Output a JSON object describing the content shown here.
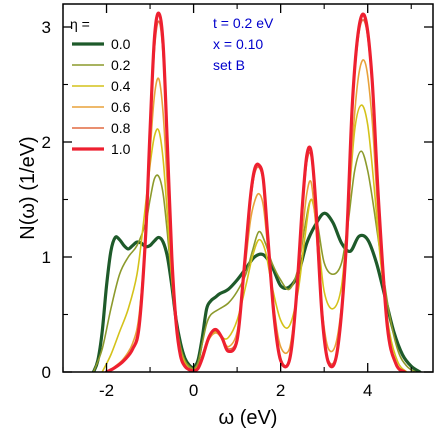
{
  "chart_data": {
    "type": "line",
    "xlabel": "ω (eV)",
    "ylabel": "N(ω) (1/eV)",
    "xlim": [
      -3,
      5.5
    ],
    "ylim": [
      0,
      3.2
    ],
    "xticks": [
      -2,
      0,
      2,
      4
    ],
    "yticks": [
      0,
      1,
      2,
      3
    ],
    "xtick_labels": [
      "-2",
      "0",
      "2",
      "4"
    ],
    "ytick_labels": [
      "0",
      "1",
      "2",
      "3"
    ],
    "grid": false,
    "legend": {
      "title": "η =",
      "placement": "top-left"
    },
    "annotations": [
      {
        "text": "t = 0.2 eV",
        "color": "#0000cc"
      },
      {
        "text": "x = 0.10",
        "color": "#0000cc"
      },
      {
        "text": "set B",
        "color": "#0000cc"
      }
    ],
    "series": [
      {
        "name": "0.0",
        "color": "#1e5a2a",
        "width": 3.2,
        "x": [
          -2.3,
          -2.2,
          -2.1,
          -2.0,
          -1.9,
          -1.8,
          -1.7,
          -1.6,
          -1.5,
          -1.4,
          -1.3,
          -1.2,
          -1.1,
          -1.0,
          -0.9,
          -0.8,
          -0.7,
          -0.6,
          -0.5,
          -0.4,
          -0.3,
          -0.2,
          -0.1,
          0.0,
          0.1,
          0.2,
          0.3,
          0.4,
          0.5,
          0.6,
          0.8,
          1.0,
          1.2,
          1.4,
          1.6,
          1.8,
          2.0,
          2.2,
          2.4,
          2.6,
          2.8,
          3.0,
          3.2,
          3.4,
          3.6,
          3.8,
          4.0,
          4.2,
          4.4,
          4.6,
          4.8,
          5.0,
          5.2
        ],
        "y": [
          0.0,
          0.1,
          0.35,
          0.75,
          1.05,
          1.17,
          1.15,
          1.1,
          1.07,
          1.1,
          1.13,
          1.12,
          1.09,
          1.1,
          1.14,
          1.17,
          1.13,
          1.0,
          0.75,
          0.45,
          0.25,
          0.12,
          0.06,
          0.04,
          0.1,
          0.3,
          0.55,
          0.62,
          0.65,
          0.68,
          0.72,
          0.8,
          0.9,
          1.0,
          1.02,
          0.92,
          0.75,
          0.74,
          0.85,
          1.12,
          1.28,
          1.38,
          1.3,
          1.12,
          1.05,
          1.18,
          1.15,
          0.95,
          0.65,
          0.35,
          0.15,
          0.05,
          0.0
        ]
      },
      {
        "name": "0.2",
        "color": "#8c9a2c",
        "width": 1.6,
        "x": [
          -2.3,
          -2.1,
          -1.9,
          -1.7,
          -1.5,
          -1.3,
          -1.1,
          -1.0,
          -0.9,
          -0.8,
          -0.7,
          -0.6,
          -0.5,
          -0.4,
          -0.3,
          -0.2,
          -0.1,
          0.0,
          0.1,
          0.2,
          0.3,
          0.4,
          0.6,
          0.8,
          1.0,
          1.2,
          1.35,
          1.5,
          1.65,
          1.8,
          2.0,
          2.2,
          2.4,
          2.55,
          2.7,
          2.85,
          3.0,
          3.2,
          3.4,
          3.55,
          3.7,
          3.85,
          4.0,
          4.15,
          4.3,
          4.5,
          4.7,
          4.9,
          5.1
        ],
        "y": [
          0.0,
          0.2,
          0.55,
          0.85,
          1.0,
          1.1,
          1.3,
          1.5,
          1.68,
          1.7,
          1.55,
          1.2,
          0.8,
          0.45,
          0.22,
          0.1,
          0.05,
          0.03,
          0.08,
          0.25,
          0.42,
          0.5,
          0.55,
          0.6,
          0.7,
          0.85,
          1.05,
          1.22,
          1.12,
          0.95,
          0.8,
          0.72,
          0.9,
          1.25,
          1.5,
          1.28,
          0.95,
          0.85,
          0.95,
          1.3,
          1.75,
          1.92,
          1.75,
          1.4,
          1.0,
          0.5,
          0.18,
          0.05,
          0.0
        ]
      },
      {
        "name": "0.4",
        "color": "#d4c21a",
        "width": 1.6,
        "x": [
          -2.1,
          -1.9,
          -1.7,
          -1.5,
          -1.3,
          -1.15,
          -1.0,
          -0.9,
          -0.8,
          -0.7,
          -0.6,
          -0.5,
          -0.4,
          -0.3,
          -0.2,
          -0.1,
          0.0,
          0.1,
          0.2,
          0.35,
          0.5,
          0.65,
          0.8,
          1.0,
          1.2,
          1.35,
          1.5,
          1.65,
          1.8,
          2.0,
          2.2,
          2.4,
          2.55,
          2.7,
          2.85,
          3.0,
          3.2,
          3.4,
          3.55,
          3.7,
          3.85,
          4.0,
          4.15,
          4.3,
          4.5,
          4.7,
          4.9
        ],
        "y": [
          0.0,
          0.15,
          0.35,
          0.55,
          0.85,
          1.3,
          1.8,
          2.05,
          2.1,
          1.85,
          1.35,
          0.8,
          0.4,
          0.18,
          0.08,
          0.03,
          0.02,
          0.05,
          0.15,
          0.3,
          0.35,
          0.3,
          0.3,
          0.45,
          0.75,
          1.0,
          1.15,
          1.05,
          0.75,
          0.45,
          0.4,
          0.7,
          1.15,
          1.5,
          1.2,
          0.7,
          0.55,
          0.75,
          1.4,
          2.1,
          2.32,
          2.15,
          1.6,
          0.95,
          0.35,
          0.08,
          0.0
        ]
      },
      {
        "name": "0.6",
        "color": "#e8a23a",
        "width": 1.6,
        "x": [
          -2.0,
          -1.8,
          -1.6,
          -1.4,
          -1.25,
          -1.1,
          -1.0,
          -0.9,
          -0.8,
          -0.7,
          -0.6,
          -0.5,
          -0.4,
          -0.3,
          -0.2,
          -0.1,
          0.0,
          0.1,
          0.2,
          0.35,
          0.5,
          0.65,
          0.8,
          1.0,
          1.15,
          1.3,
          1.4,
          1.5,
          1.6,
          1.7,
          1.85,
          2.0,
          2.2,
          2.35,
          2.5,
          2.6,
          2.7,
          2.8,
          2.95,
          3.1,
          3.3,
          3.5,
          3.65,
          3.8,
          3.95,
          4.1,
          4.25,
          4.45,
          4.65,
          4.85
        ],
        "y": [
          0.0,
          0.05,
          0.12,
          0.25,
          0.5,
          1.2,
          1.9,
          2.4,
          2.55,
          2.25,
          1.6,
          0.9,
          0.4,
          0.15,
          0.06,
          0.02,
          0.01,
          0.03,
          0.12,
          0.28,
          0.34,
          0.3,
          0.22,
          0.35,
          0.8,
          1.3,
          1.48,
          1.55,
          1.45,
          1.1,
          0.55,
          0.22,
          0.2,
          0.6,
          1.2,
          1.55,
          1.65,
          1.3,
          0.55,
          0.2,
          0.3,
          1.0,
          2.0,
          2.6,
          2.68,
          2.2,
          1.3,
          0.4,
          0.08,
          0.0
        ]
      },
      {
        "name": "0.8",
        "color": "#e26a40",
        "width": 1.6,
        "x": [
          -2.0,
          -1.8,
          -1.6,
          -1.4,
          -1.25,
          -1.1,
          -1.0,
          -0.9,
          -0.8,
          -0.7,
          -0.6,
          -0.5,
          -0.4,
          -0.3,
          -0.2,
          -0.1,
          0.0,
          0.1,
          0.2,
          0.35,
          0.5,
          0.65,
          0.8,
          1.0,
          1.15,
          1.3,
          1.4,
          1.5,
          1.6,
          1.7,
          1.85,
          2.0,
          2.2,
          2.35,
          2.5,
          2.6,
          2.7,
          2.8,
          2.95,
          3.1,
          3.3,
          3.5,
          3.65,
          3.8,
          3.95,
          4.1,
          4.25,
          4.45,
          4.65,
          4.85
        ],
        "y": [
          0.0,
          0.04,
          0.1,
          0.2,
          0.45,
          1.25,
          2.1,
          2.8,
          3.05,
          2.75,
          1.9,
          1.0,
          0.42,
          0.15,
          0.05,
          0.02,
          0.01,
          0.03,
          0.12,
          0.3,
          0.36,
          0.3,
          0.2,
          0.3,
          0.85,
          1.45,
          1.72,
          1.78,
          1.65,
          1.2,
          0.5,
          0.12,
          0.1,
          0.6,
          1.4,
          1.82,
          1.88,
          1.45,
          0.5,
          0.1,
          0.2,
          1.05,
          2.3,
          2.95,
          3.02,
          2.5,
          1.45,
          0.4,
          0.07,
          0.0
        ]
      },
      {
        "name": "1.0",
        "color": "#ee2030",
        "width": 3.2,
        "x": [
          -2.0,
          -1.8,
          -1.6,
          -1.4,
          -1.25,
          -1.1,
          -1.0,
          -0.9,
          -0.8,
          -0.7,
          -0.6,
          -0.5,
          -0.4,
          -0.3,
          -0.2,
          -0.1,
          0.0,
          0.1,
          0.2,
          0.35,
          0.5,
          0.65,
          0.8,
          1.0,
          1.15,
          1.3,
          1.4,
          1.5,
          1.6,
          1.7,
          1.85,
          2.0,
          2.2,
          2.35,
          2.5,
          2.6,
          2.7,
          2.8,
          2.95,
          3.1,
          3.3,
          3.5,
          3.65,
          3.8,
          3.95,
          4.1,
          4.25,
          4.45,
          4.65,
          4.85
        ],
        "y": [
          0.0,
          0.04,
          0.1,
          0.2,
          0.4,
          1.2,
          2.1,
          2.9,
          3.12,
          2.85,
          1.95,
          1.0,
          0.42,
          0.14,
          0.05,
          0.02,
          0.01,
          0.03,
          0.12,
          0.3,
          0.37,
          0.3,
          0.18,
          0.28,
          0.85,
          1.5,
          1.76,
          1.8,
          1.68,
          1.2,
          0.48,
          0.1,
          0.1,
          0.6,
          1.45,
          1.88,
          1.92,
          1.5,
          0.5,
          0.08,
          0.18,
          1.05,
          2.35,
          3.0,
          3.07,
          2.55,
          1.48,
          0.4,
          0.07,
          0.0
        ]
      }
    ]
  }
}
